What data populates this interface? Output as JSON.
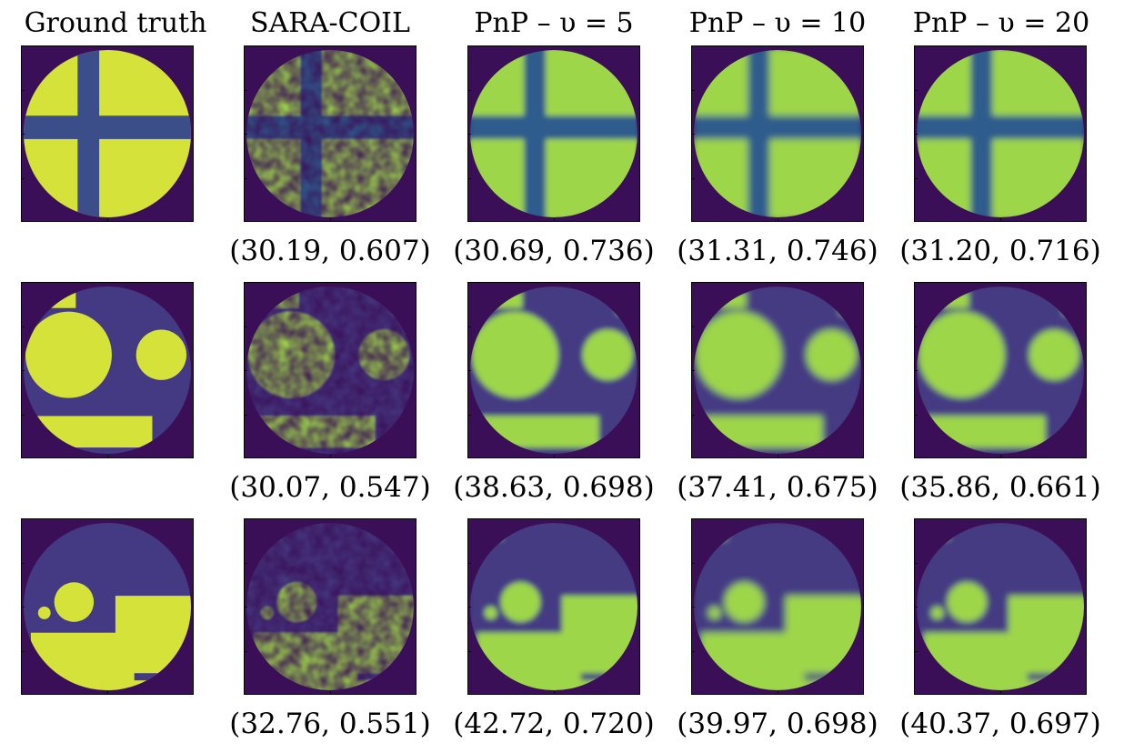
{
  "columns": [
    {
      "title": "Ground truth"
    },
    {
      "title": "SARA-COIL"
    },
    {
      "title": "PnP – υ = 5"
    },
    {
      "title": "PnP – υ = 10"
    },
    {
      "title": "PnP – υ = 20"
    }
  ],
  "rows": [
    {
      "captions": [
        "",
        "(30.19, 0.607)",
        "(30.69, 0.736)",
        "(31.31, 0.746)",
        "(31.20, 0.716)"
      ]
    },
    {
      "captions": [
        "",
        "(30.07, 0.547)",
        "(38.63, 0.698)",
        "(37.41, 0.675)",
        "(35.86, 0.661)"
      ]
    },
    {
      "captions": [
        "",
        "(32.76, 0.551)",
        "(42.72, 0.720)",
        "(39.97, 0.698)",
        "(40.37, 0.697)"
      ]
    }
  ],
  "colors": {
    "background": "#3a0f57",
    "phantom_bright": "#d4e23a",
    "phantom_mid": "#9ed64a",
    "phantom_dark": "#2d5b8c"
  }
}
